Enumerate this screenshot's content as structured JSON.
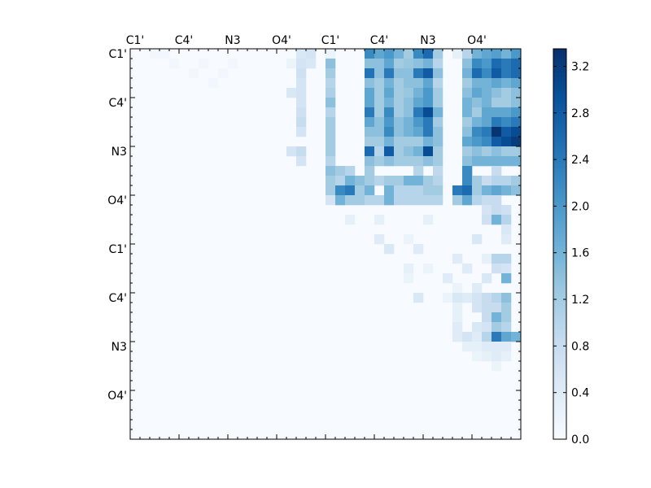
{
  "chart_data": {
    "type": "heatmap",
    "title": "",
    "xlabel": "",
    "ylabel": "",
    "x_tick_labels": [
      "C1'",
      "C4'",
      "N3",
      "O4'",
      "C1'",
      "C4'",
      "N3",
      "O4'"
    ],
    "y_tick_labels": [
      "C1'",
      "C4'",
      "N3",
      "O4'",
      "C1'",
      "C4'",
      "N3",
      "O4'"
    ],
    "grid_size": 40,
    "colorbar": {
      "colormap": "Blues",
      "min": 0.0,
      "max": 3.35,
      "ticks": [
        "0.0",
        "0.4",
        "0.8",
        "1.2",
        "1.6",
        "2.0",
        "2.4",
        "2.8",
        "3.2"
      ]
    },
    "blocks_note": "upper-triangle distance-difference matrix; values approximate",
    "values_sparse": [
      [
        0,
        2,
        0.1
      ],
      [
        0,
        3,
        0.1
      ],
      [
        0,
        17,
        0.5
      ],
      [
        0,
        18,
        0.6
      ],
      [
        0,
        20,
        0.2
      ],
      [
        0,
        24,
        2.2
      ],
      [
        0,
        25,
        1.8
      ],
      [
        0,
        26,
        2.0
      ],
      [
        0,
        27,
        1.6
      ],
      [
        0,
        28,
        1.2
      ],
      [
        0,
        29,
        2.2
      ],
      [
        0,
        30,
        2.6
      ],
      [
        0,
        31,
        1.2
      ],
      [
        0,
        33,
        0.3
      ],
      [
        0,
        34,
        1.0
      ],
      [
        0,
        35,
        1.6
      ],
      [
        0,
        36,
        1.8
      ],
      [
        0,
        37,
        1.9
      ],
      [
        0,
        38,
        1.6
      ],
      [
        0,
        39,
        2.0
      ],
      [
        1,
        4,
        0.1
      ],
      [
        1,
        7,
        0.1
      ],
      [
        1,
        10,
        0.1
      ],
      [
        1,
        16,
        0.2
      ],
      [
        1,
        17,
        0.6
      ],
      [
        1,
        18,
        0.5
      ],
      [
        1,
        20,
        1.4
      ],
      [
        1,
        24,
        1.4
      ],
      [
        1,
        25,
        1.4
      ],
      [
        1,
        26,
        1.8
      ],
      [
        1,
        27,
        1.2
      ],
      [
        1,
        28,
        1.3
      ],
      [
        1,
        29,
        1.4
      ],
      [
        1,
        30,
        1.6
      ],
      [
        1,
        31,
        1.0
      ],
      [
        1,
        34,
        1.4
      ],
      [
        1,
        35,
        2.2
      ],
      [
        1,
        36,
        2.0
      ],
      [
        1,
        37,
        2.6
      ],
      [
        1,
        38,
        2.4
      ],
      [
        1,
        39,
        2.6
      ],
      [
        2,
        6,
        0.1
      ],
      [
        2,
        9,
        0.1
      ],
      [
        2,
        17,
        0.7
      ],
      [
        2,
        20,
        1.2
      ],
      [
        2,
        24,
        2.5
      ],
      [
        2,
        25,
        1.4
      ],
      [
        2,
        26,
        2.4
      ],
      [
        2,
        27,
        1.4
      ],
      [
        2,
        28,
        1.4
      ],
      [
        2,
        29,
        2.4
      ],
      [
        2,
        30,
        2.8
      ],
      [
        2,
        31,
        1.4
      ],
      [
        2,
        34,
        1.6
      ],
      [
        2,
        35,
        2.6
      ],
      [
        2,
        36,
        2.2
      ],
      [
        2,
        37,
        2.8
      ],
      [
        2,
        38,
        2.4
      ],
      [
        2,
        39,
        2.6
      ],
      [
        3,
        8,
        0.1
      ],
      [
        3,
        17,
        0.6
      ],
      [
        3,
        20,
        1.0
      ],
      [
        3,
        24,
        1.4
      ],
      [
        3,
        25,
        1.2
      ],
      [
        3,
        26,
        1.6
      ],
      [
        3,
        27,
        1.2
      ],
      [
        3,
        28,
        1.4
      ],
      [
        3,
        29,
        1.4
      ],
      [
        3,
        30,
        1.8
      ],
      [
        3,
        31,
        1.0
      ],
      [
        3,
        34,
        1.2
      ],
      [
        3,
        35,
        1.6
      ],
      [
        3,
        36,
        1.6
      ],
      [
        3,
        37,
        1.8
      ],
      [
        3,
        38,
        1.6
      ],
      [
        3,
        39,
        1.8
      ],
      [
        4,
        16,
        0.5
      ],
      [
        4,
        17,
        0.6
      ],
      [
        4,
        20,
        1.1
      ],
      [
        4,
        24,
        1.8
      ],
      [
        4,
        25,
        1.2
      ],
      [
        4,
        26,
        1.8
      ],
      [
        4,
        27,
        1.2
      ],
      [
        4,
        28,
        1.3
      ],
      [
        4,
        29,
        1.6
      ],
      [
        4,
        30,
        2.0
      ],
      [
        4,
        31,
        1.2
      ],
      [
        4,
        34,
        1.4
      ],
      [
        4,
        35,
        1.8
      ],
      [
        4,
        36,
        1.6
      ],
      [
        4,
        37,
        1.4
      ],
      [
        4,
        38,
        1.2
      ],
      [
        4,
        39,
        1.4
      ],
      [
        5,
        17,
        0.6
      ],
      [
        5,
        20,
        1.4
      ],
      [
        5,
        24,
        1.8
      ],
      [
        5,
        25,
        1.2
      ],
      [
        5,
        26,
        1.6
      ],
      [
        5,
        27,
        1.2
      ],
      [
        5,
        28,
        1.4
      ],
      [
        5,
        29,
        1.8
      ],
      [
        5,
        30,
        2.0
      ],
      [
        5,
        31,
        1.2
      ],
      [
        5,
        34,
        1.6
      ],
      [
        5,
        35,
        1.4
      ],
      [
        5,
        36,
        1.6
      ],
      [
        5,
        37,
        1.2
      ],
      [
        5,
        38,
        1.2
      ],
      [
        5,
        39,
        1.4
      ],
      [
        6,
        17,
        0.7
      ],
      [
        6,
        20,
        1.0
      ],
      [
        6,
        24,
        2.4
      ],
      [
        6,
        25,
        1.2
      ],
      [
        6,
        26,
        2.2
      ],
      [
        6,
        27,
        1.2
      ],
      [
        6,
        28,
        1.4
      ],
      [
        6,
        29,
        2.4
      ],
      [
        6,
        30,
        3.0
      ],
      [
        6,
        31,
        1.6
      ],
      [
        6,
        34,
        1.6
      ],
      [
        6,
        35,
        1.2
      ],
      [
        6,
        36,
        1.8
      ],
      [
        6,
        37,
        1.8
      ],
      [
        6,
        38,
        1.8
      ],
      [
        6,
        39,
        2.0
      ],
      [
        7,
        17,
        0.8
      ],
      [
        7,
        20,
        1.2
      ],
      [
        7,
        24,
        1.8
      ],
      [
        7,
        25,
        1.4
      ],
      [
        7,
        26,
        2.0
      ],
      [
        7,
        27,
        1.4
      ],
      [
        7,
        28,
        1.6
      ],
      [
        7,
        29,
        2.0
      ],
      [
        7,
        30,
        2.4
      ],
      [
        7,
        31,
        1.2
      ],
      [
        7,
        34,
        1.2
      ],
      [
        7,
        35,
        1.6
      ],
      [
        7,
        36,
        1.8
      ],
      [
        7,
        37,
        2.4
      ],
      [
        7,
        38,
        2.2
      ],
      [
        7,
        39,
        2.4
      ],
      [
        8,
        17,
        0.6
      ],
      [
        8,
        20,
        1.2
      ],
      [
        8,
        24,
        1.4
      ],
      [
        8,
        25,
        1.4
      ],
      [
        8,
        26,
        2.2
      ],
      [
        8,
        27,
        1.4
      ],
      [
        8,
        28,
        1.6
      ],
      [
        8,
        29,
        1.8
      ],
      [
        8,
        30,
        2.4
      ],
      [
        8,
        31,
        1.4
      ],
      [
        8,
        34,
        1.4
      ],
      [
        8,
        35,
        2.2
      ],
      [
        8,
        36,
        2.4
      ],
      [
        8,
        37,
        3.3
      ],
      [
        8,
        38,
        2.8
      ],
      [
        8,
        39,
        3.0
      ],
      [
        9,
        20,
        1.2
      ],
      [
        9,
        24,
        1.2
      ],
      [
        9,
        25,
        1.2
      ],
      [
        9,
        26,
        1.6
      ],
      [
        9,
        27,
        1.2
      ],
      [
        9,
        28,
        1.2
      ],
      [
        9,
        29,
        1.2
      ],
      [
        9,
        30,
        1.6
      ],
      [
        9,
        31,
        1.4
      ],
      [
        9,
        34,
        1.8
      ],
      [
        9,
        35,
        2.0
      ],
      [
        9,
        36,
        2.2
      ],
      [
        9,
        37,
        2.8
      ],
      [
        9,
        38,
        3.0
      ],
      [
        9,
        39,
        3.2
      ],
      [
        10,
        16,
        0.6
      ],
      [
        10,
        17,
        0.8
      ],
      [
        10,
        20,
        1.2
      ],
      [
        10,
        24,
        2.6
      ],
      [
        10,
        25,
        1.0
      ],
      [
        10,
        26,
        2.8
      ],
      [
        10,
        27,
        1.2
      ],
      [
        10,
        28,
        1.4
      ],
      [
        10,
        29,
        1.6
      ],
      [
        10,
        30,
        3.0
      ],
      [
        10,
        31,
        1.2
      ],
      [
        10,
        34,
        1.2
      ],
      [
        10,
        35,
        1.4
      ],
      [
        10,
        36,
        1.2
      ],
      [
        10,
        37,
        1.4
      ],
      [
        10,
        38,
        1.2
      ],
      [
        10,
        39,
        1.2
      ],
      [
        11,
        17,
        0.6
      ],
      [
        11,
        20,
        1.0
      ],
      [
        11,
        24,
        1.4
      ],
      [
        11,
        25,
        1.2
      ],
      [
        11,
        26,
        1.4
      ],
      [
        11,
        27,
        1.2
      ],
      [
        11,
        28,
        1.2
      ],
      [
        11,
        29,
        1.2
      ],
      [
        11,
        30,
        1.4
      ],
      [
        11,
        31,
        1.2
      ],
      [
        11,
        34,
        1.4
      ],
      [
        11,
        35,
        1.6
      ],
      [
        11,
        36,
        1.6
      ],
      [
        11,
        37,
        1.6
      ],
      [
        11,
        38,
        1.6
      ],
      [
        11,
        39,
        1.6
      ],
      [
        12,
        20,
        1.4
      ],
      [
        12,
        21,
        1.2
      ],
      [
        12,
        22,
        1.0
      ],
      [
        12,
        24,
        1.2
      ],
      [
        12,
        29,
        1.0
      ],
      [
        12,
        31,
        0.9
      ],
      [
        12,
        34,
        2.2
      ],
      [
        12,
        37,
        0.8
      ],
      [
        13,
        20,
        1.2
      ],
      [
        13,
        21,
        1.0
      ],
      [
        13,
        22,
        1.6
      ],
      [
        13,
        23,
        1.4
      ],
      [
        13,
        24,
        1.2
      ],
      [
        13,
        25,
        1.0
      ],
      [
        13,
        26,
        1.2
      ],
      [
        13,
        27,
        1.2
      ],
      [
        13,
        28,
        1.6
      ],
      [
        13,
        29,
        1.6
      ],
      [
        13,
        30,
        1.2
      ],
      [
        13,
        31,
        1.0
      ],
      [
        13,
        34,
        2.2
      ],
      [
        13,
        35,
        1.2
      ],
      [
        13,
        36,
        0.8
      ],
      [
        13,
        37,
        1.0
      ],
      [
        13,
        38,
        1.0
      ],
      [
        13,
        39,
        1.2
      ],
      [
        14,
        20,
        1.2
      ],
      [
        14,
        21,
        2.2
      ],
      [
        14,
        22,
        2.4
      ],
      [
        14,
        23,
        1.2
      ],
      [
        14,
        24,
        1.6
      ],
      [
        14,
        26,
        1.6
      ],
      [
        14,
        27,
        1.0
      ],
      [
        14,
        28,
        1.0
      ],
      [
        14,
        29,
        1.0
      ],
      [
        14,
        30,
        1.2
      ],
      [
        14,
        31,
        1.2
      ],
      [
        14,
        33,
        2.4
      ],
      [
        14,
        34,
        2.6
      ],
      [
        14,
        35,
        1.2
      ],
      [
        14,
        36,
        1.6
      ],
      [
        14,
        37,
        1.8
      ],
      [
        14,
        38,
        1.6
      ],
      [
        14,
        39,
        1.4
      ],
      [
        15,
        20,
        0.6
      ],
      [
        15,
        21,
        1.6
      ],
      [
        15,
        22,
        1.2
      ],
      [
        15,
        23,
        1.2
      ],
      [
        15,
        24,
        1.0
      ],
      [
        15,
        25,
        1.0
      ],
      [
        15,
        26,
        1.6
      ],
      [
        15,
        27,
        1.0
      ],
      [
        15,
        28,
        1.0
      ],
      [
        15,
        29,
        1.0
      ],
      [
        15,
        30,
        1.0
      ],
      [
        15,
        31,
        1.0
      ],
      [
        15,
        33,
        1.2
      ],
      [
        15,
        34,
        1.8
      ],
      [
        15,
        35,
        1.0
      ],
      [
        15,
        36,
        0.8
      ],
      [
        15,
        37,
        0.8
      ],
      [
        16,
        36,
        0.6
      ],
      [
        16,
        37,
        0.8
      ],
      [
        16,
        38,
        0.7
      ],
      [
        17,
        22,
        0.3
      ],
      [
        17,
        25,
        0.3
      ],
      [
        17,
        30,
        0.3
      ],
      [
        17,
        36,
        0.7
      ],
      [
        17,
        37,
        1.6
      ],
      [
        17,
        38,
        1.0
      ],
      [
        18,
        38,
        0.5
      ],
      [
        19,
        25,
        0.4
      ],
      [
        19,
        28,
        0.2
      ],
      [
        19,
        35,
        0.5
      ],
      [
        19,
        38,
        0.4
      ],
      [
        20,
        26,
        0.5
      ],
      [
        20,
        29,
        0.4
      ],
      [
        21,
        33,
        0.4
      ],
      [
        21,
        36,
        0.3
      ],
      [
        21,
        37,
        1.0
      ],
      [
        21,
        38,
        1.0
      ],
      [
        22,
        28,
        0.3
      ],
      [
        22,
        30,
        0.2
      ],
      [
        22,
        34,
        0.4
      ],
      [
        22,
        37,
        0.7
      ],
      [
        22,
        38,
        0.6
      ],
      [
        23,
        28,
        0.2
      ],
      [
        23,
        32,
        0.4
      ],
      [
        23,
        36,
        0.5
      ],
      [
        23,
        38,
        1.6
      ],
      [
        24,
        33,
        0.2
      ],
      [
        24,
        35,
        0.4
      ],
      [
        25,
        29,
        0.5
      ],
      [
        25,
        32,
        0.2
      ],
      [
        25,
        33,
        0.5
      ],
      [
        25,
        34,
        0.4
      ],
      [
        25,
        35,
        0.6
      ],
      [
        25,
        36,
        0.8
      ],
      [
        25,
        37,
        1.0
      ],
      [
        25,
        38,
        1.4
      ],
      [
        26,
        33,
        0.3
      ],
      [
        26,
        35,
        0.6
      ],
      [
        26,
        36,
        0.8
      ],
      [
        26,
        37,
        0.8
      ],
      [
        26,
        38,
        1.2
      ],
      [
        27,
        33,
        0.3
      ],
      [
        27,
        36,
        0.8
      ],
      [
        27,
        37,
        1.6
      ],
      [
        27,
        38,
        1.2
      ],
      [
        28,
        33,
        0.4
      ],
      [
        28,
        35,
        0.5
      ],
      [
        28,
        36,
        0.6
      ],
      [
        28,
        37,
        1.2
      ],
      [
        28,
        38,
        1.0
      ],
      [
        29,
        33,
        0.4
      ],
      [
        29,
        34,
        0.6
      ],
      [
        29,
        35,
        0.4
      ],
      [
        29,
        36,
        1.0
      ],
      [
        29,
        37,
        2.4
      ],
      [
        29,
        38,
        1.8
      ],
      [
        29,
        39,
        1.6
      ],
      [
        30,
        34,
        0.3
      ],
      [
        30,
        35,
        0.3
      ],
      [
        30,
        36,
        0.4
      ],
      [
        30,
        37,
        0.4
      ],
      [
        30,
        38,
        0.4
      ],
      [
        31,
        35,
        0.2
      ],
      [
        31,
        36,
        0.3
      ],
      [
        31,
        37,
        0.4
      ],
      [
        31,
        38,
        0.3
      ],
      [
        32,
        37,
        0.2
      ]
    ]
  }
}
